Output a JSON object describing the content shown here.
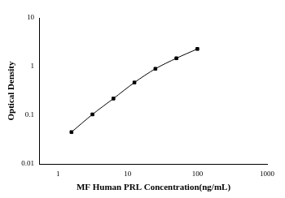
{
  "chart_data": {
    "type": "line",
    "xlabel": "MF Human PRL Concentration(ng/mL)",
    "ylabel": "Optical Density",
    "x": [
      1.5625,
      3.125,
      6.25,
      12.5,
      25,
      50,
      100
    ],
    "series": [
      {
        "name": "PRL",
        "color": "#000000",
        "marker": "square",
        "line_style": "solid",
        "values": [
          0.045,
          0.104,
          0.22,
          0.47,
          0.9,
          1.48,
          2.3
        ]
      }
    ],
    "log": true,
    "xlim": [
      0.55,
      1000
    ],
    "xticks": [
      1,
      10,
      100,
      1000
    ],
    "ylim": [
      0.01,
      10
    ],
    "yticks": [
      0.01,
      0.1,
      1,
      10
    ],
    "grid": false
  }
}
